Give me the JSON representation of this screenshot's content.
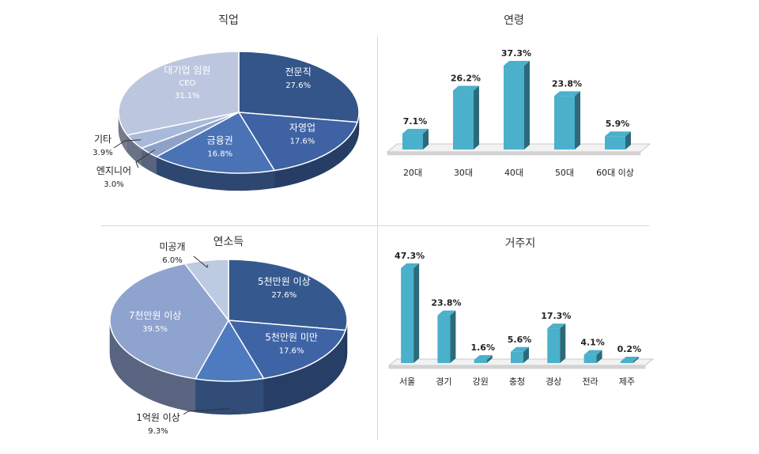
{
  "chart_data": [
    {
      "type": "pie",
      "title": "직업",
      "slices": [
        {
          "label": "전문직",
          "sublabel": "",
          "value": 27.6,
          "value_label": "27.6%",
          "color": "#33558a"
        },
        {
          "label": "자영업",
          "sublabel": "",
          "value": 17.6,
          "value_label": "17.6%",
          "color": "#3e62a3"
        },
        {
          "label": "금융권",
          "sublabel": "",
          "value": 16.8,
          "value_label": "16.8%",
          "color": "#4a73b6"
        },
        {
          "label": "엔지니어",
          "sublabel": "",
          "value": 3.0,
          "value_label": "3.0%",
          "color": "#8ea2c9"
        },
        {
          "label": "기타",
          "sublabel": "",
          "value": 3.9,
          "value_label": "3.9%",
          "color": "#a9b9d9"
        },
        {
          "label": "대기업 임원",
          "sublabel": "CEO",
          "value": 31.1,
          "value_label": "31.1%",
          "color": "#bcc7df"
        }
      ]
    },
    {
      "type": "bar",
      "title": "연령",
      "categories": [
        "20대",
        "30대",
        "40대",
        "50대",
        "60대 이상"
      ],
      "values": [
        7.1,
        26.2,
        37.3,
        23.8,
        5.9
      ],
      "value_labels": [
        "7.1%",
        "26.2%",
        "37.3%",
        "23.8%",
        "5.9%"
      ],
      "color": "#4ab0cb"
    },
    {
      "type": "pie",
      "title": "연소득",
      "slices": [
        {
          "label": "5천만원 이상",
          "value": 27.6,
          "value_label": "27.6%",
          "color": "#35598f"
        },
        {
          "label": "5천만원 미만",
          "value": 17.6,
          "value_label": "17.6%",
          "color": "#3f64a6"
        },
        {
          "label": "1억원 이상",
          "value": 9.3,
          "value_label": "9.3%",
          "color": "#4e7bc0"
        },
        {
          "label": "7천만원 이상",
          "value": 39.5,
          "value_label": "39.5%",
          "color": "#8fa3cf"
        },
        {
          "label": "미공개",
          "value": 6.0,
          "value_label": "6.0%",
          "color": "#bccae2"
        }
      ]
    },
    {
      "type": "bar",
      "title": "거주지",
      "categories": [
        "서울",
        "경기",
        "강원",
        "충청",
        "경상",
        "전라",
        "제주"
      ],
      "values": [
        47.3,
        23.8,
        1.6,
        5.6,
        17.3,
        4.1,
        0.2
      ],
      "value_labels": [
        "47.3%",
        "23.8%",
        "1.6%",
        "5.6%",
        "17.3%",
        "4.1%",
        "0.2%"
      ],
      "color": "#4ab0cb"
    }
  ]
}
